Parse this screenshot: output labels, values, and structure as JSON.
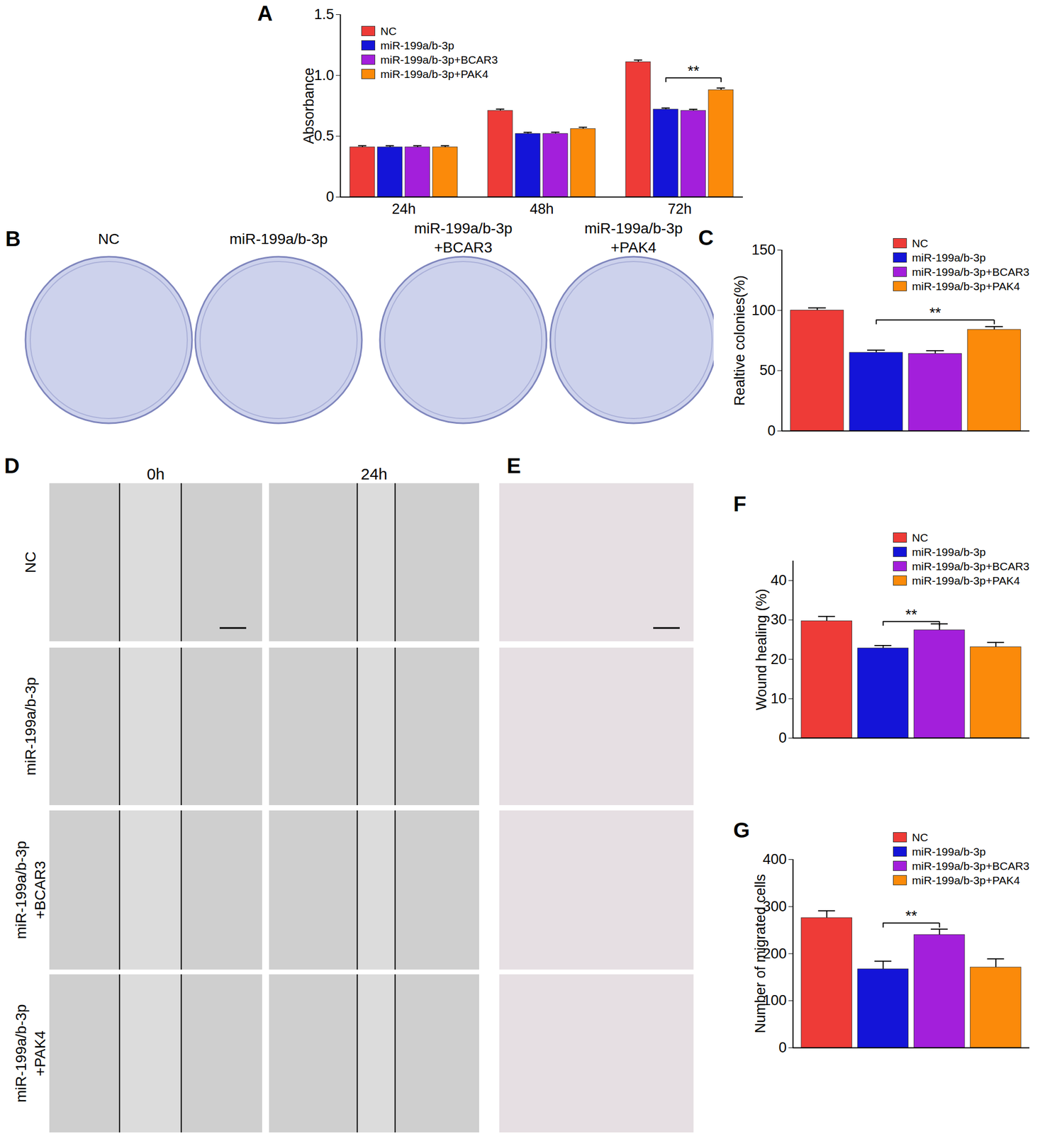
{
  "chart_data": [
    {
      "panel": "A",
      "type": "bar",
      "y_label": "Absorbance",
      "categories": [
        "24h",
        "48h",
        "72h"
      ],
      "series": [
        {
          "name": "NC",
          "color": "#ee3b37",
          "values": [
            0.41,
            0.71,
            1.11
          ],
          "errors": [
            0.012,
            0.013,
            0.016
          ]
        },
        {
          "name": "miR-199a/b-3p",
          "color": "#1414d8",
          "values": [
            0.41,
            0.52,
            0.72
          ],
          "errors": [
            0.012,
            0.012,
            0.012
          ]
        },
        {
          "name": "miR-199a/b-3p+BCAR3",
          "color": "#a31fdb",
          "values": [
            0.41,
            0.52,
            0.71
          ],
          "errors": [
            0.012,
            0.013,
            0.011
          ]
        },
        {
          "name": "miR-199a/b-3p+PAK4",
          "color": "#fb8a0a",
          "values": [
            0.41,
            0.56,
            0.88
          ],
          "errors": [
            0.012,
            0.014,
            0.016
          ]
        }
      ],
      "ylim": [
        0,
        1.5
      ],
      "yticks": [
        0,
        0.5,
        {
          "value": 1,
          "label": "1.0"
        },
        1.5
      ],
      "legend": "top-left",
      "significance": [
        {
          "category": "72h",
          "from": "miR-199a/b-3p",
          "to": "miR-199a/b-3p+PAK4",
          "y": 0.98,
          "label": "**"
        }
      ]
    },
    {
      "panel": "C",
      "type": "bar",
      "y_label": "Realtive colonies(%)",
      "categories": [
        "NC",
        "miR-199a/b-3p",
        "miR-199a/b-3p+BCAR3",
        "miR-199a/b-3p+PAK4"
      ],
      "values": [
        100,
        65,
        64,
        84
      ],
      "errors": [
        2,
        2,
        2.5,
        2.5
      ],
      "colors": [
        "#ee3b37",
        "#1414d8",
        "#a31fdb",
        "#fb8a0a"
      ],
      "ylim": [
        0,
        150
      ],
      "yticks": [
        0,
        50,
        100,
        150
      ],
      "legend": "top-right",
      "tick_labels": "y",
      "significance": [
        {
          "from": "miR-199a/b-3p",
          "to": "miR-199a/b-3p+PAK4",
          "y": 92,
          "label": "**"
        }
      ]
    },
    {
      "panel": "F",
      "type": "bar",
      "y_label": "Wound healing (%)",
      "categories": [
        "NC",
        "miR-199a/b-3p",
        "miR-199a/b-3p+BCAR3",
        "miR-199a/b-3p+PAK4"
      ],
      "values": [
        29.7,
        22.8,
        27.4,
        23.1
      ],
      "errors": [
        1.2,
        0.7,
        1.6,
        1.2
      ],
      "colors": [
        "#ee3b37",
        "#1414d8",
        "#a31fdb",
        "#fb8a0a"
      ],
      "ylim": [
        0,
        45
      ],
      "yticks": [
        0,
        10,
        20,
        30,
        40
      ],
      "legend": "top-right",
      "tick_labels": "y",
      "significance": [
        {
          "from": "miR-199a/b-3p",
          "to": "miR-199a/b-3p+BCAR3",
          "y": 29.6,
          "label": "**"
        }
      ]
    },
    {
      "panel": "G",
      "type": "bar",
      "y_label": "Number of migrated cells",
      "categories": [
        "NC",
        "miR-199a/b-3p",
        "miR-199a/b-3p+BCAR3",
        "miR-199a/b-3p+PAK4"
      ],
      "values": [
        276,
        167,
        240,
        171
      ],
      "errors": [
        15,
        17,
        12,
        18
      ],
      "colors": [
        "#ee3b37",
        "#1414d8",
        "#a31fdb",
        "#fb8a0a"
      ],
      "ylim": [
        0,
        400
      ],
      "yticks": [
        0,
        100,
        200,
        300,
        400
      ],
      "legend": "top-right",
      "tick_labels": "y",
      "significance": [
        {
          "from": "miR-199a/b-3p",
          "to": "miR-199a/b-3p+BCAR3",
          "y": 265,
          "label": "**"
        }
      ]
    }
  ],
  "image_panels": {
    "B": {
      "panel": "B",
      "plates": [
        [
          "NC"
        ],
        [
          "miR-199a/b-3p"
        ],
        [
          "miR-199a/b-3p",
          "+BCAR3"
        ],
        [
          "miR-199a/b-3p",
          "+PAK4"
        ]
      ]
    },
    "D": {
      "panel": "D",
      "columns": [
        "0h",
        "24h"
      ],
      "rows": [
        [
          "NC"
        ],
        [
          "miR-199a/b-3p"
        ],
        [
          "miR-199a/b-3p",
          "+BCAR3"
        ],
        [
          "miR-199a/b-3p",
          "+PAK4"
        ]
      ]
    },
    "E": {
      "panel": "E",
      "rows": 4
    }
  }
}
